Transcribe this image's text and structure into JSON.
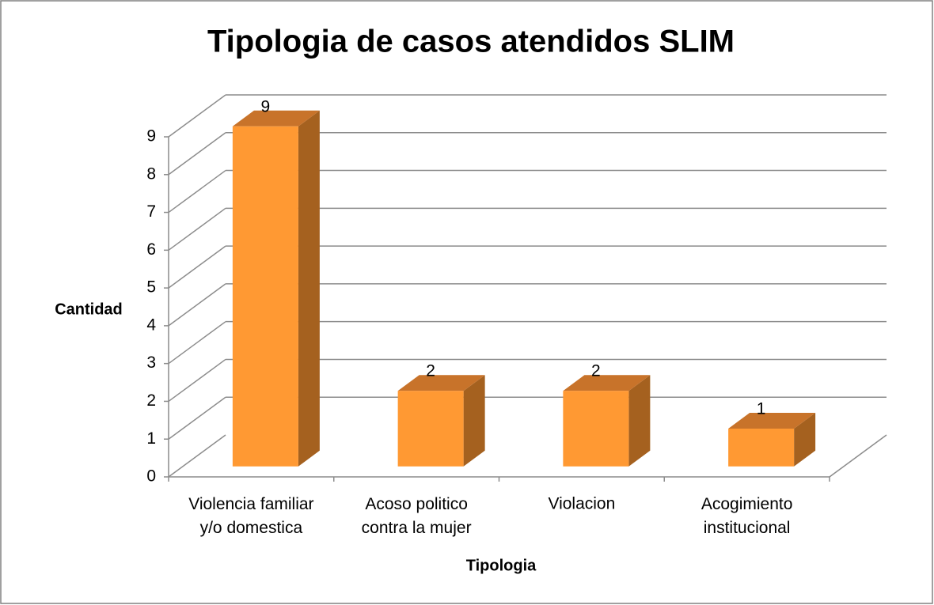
{
  "chart_data": {
    "type": "bar3d",
    "title": "Tipologia de casos atendidos SLIM",
    "x_label": "Tipologia",
    "y_label": "Cantidad",
    "categories": [
      "Violencia familiar\ny/o domestica",
      "Acoso politico\ncontra la mujer",
      "Violacion",
      "Acogimiento\ninstitucional"
    ],
    "values": [
      9,
      2,
      2,
      1
    ],
    "color": "#ff9933",
    "ylim": [
      0,
      9
    ],
    "yticks": [
      0,
      1,
      2,
      3,
      4,
      5,
      6,
      7,
      8,
      9
    ],
    "grid": true
  }
}
